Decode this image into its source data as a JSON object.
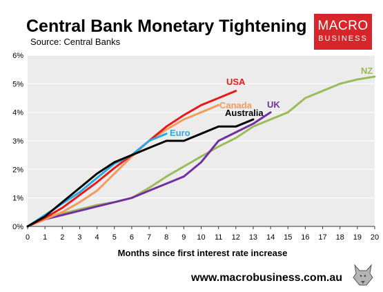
{
  "header": {
    "title": "Central Bank Monetary Tightening",
    "subtitle": "Source: Central Banks",
    "logo_line1": "MACRO",
    "logo_line2": "BUSINESS"
  },
  "footer": {
    "website": "www.macrobusiness.com.au"
  },
  "colors": {
    "plot_background": "#ececec",
    "gridline": "#ffffff",
    "logo_background": "#d6262b"
  },
  "chart_data": {
    "type": "line",
    "title": "Central Bank Monetary Tightening",
    "subtitle": "Source: Central Banks",
    "xlabel": "Months since first interest rate increase",
    "ylabel": "",
    "xlim": [
      0,
      20
    ],
    "ylim": [
      0,
      6
    ],
    "x_ticks": [
      "0",
      "1",
      "2",
      "3",
      "4",
      "5",
      "6",
      "7",
      "8",
      "9",
      "10",
      "11",
      "12",
      "13",
      "14",
      "15",
      "16",
      "17",
      "18",
      "19",
      "20"
    ],
    "y_ticks": [
      "0%",
      "1%",
      "2%",
      "3%",
      "4%",
      "5%",
      "6%"
    ],
    "grid": "horizontal",
    "legend": "inline labels",
    "series": [
      {
        "name": "Euro",
        "color": "#29abe2",
        "x": [
          0,
          1,
          2,
          3,
          4,
          5,
          6,
          7,
          8
        ],
        "y": [
          0,
          0.4,
          0.8,
          1.2,
          1.7,
          2.2,
          2.5,
          3.0,
          3.25
        ]
      },
      {
        "name": "USA",
        "color": "#e8191a",
        "x": [
          0,
          1,
          2,
          3,
          4,
          5,
          6,
          7,
          8,
          9,
          10,
          11,
          12
        ],
        "y": [
          0,
          0.3,
          0.65,
          1.1,
          1.55,
          2.05,
          2.5,
          3.0,
          3.5,
          3.9,
          4.25,
          4.5,
          4.75
        ]
      },
      {
        "name": "Canada",
        "color": "#f49a5a",
        "x": [
          0,
          1,
          2,
          3,
          4,
          5,
          6,
          7,
          8,
          9,
          10,
          11
        ],
        "y": [
          0,
          0.25,
          0.5,
          0.85,
          1.25,
          1.85,
          2.45,
          3.0,
          3.4,
          3.75,
          4.0,
          4.25
        ]
      },
      {
        "name": "Australia",
        "color": "#000000",
        "x": [
          0,
          1,
          2,
          3,
          4,
          5,
          6,
          7,
          8,
          9,
          10,
          11,
          12,
          13
        ],
        "y": [
          0,
          0.35,
          0.85,
          1.35,
          1.85,
          2.25,
          2.5,
          2.75,
          3.0,
          3.0,
          3.25,
          3.5,
          3.5,
          3.75
        ]
      },
      {
        "name": "UK",
        "color": "#7030a0",
        "x": [
          0,
          1,
          2,
          3,
          4,
          5,
          6,
          7,
          8,
          9,
          10,
          11,
          12,
          13,
          14
        ],
        "y": [
          0,
          0.25,
          0.4,
          0.55,
          0.7,
          0.85,
          1.0,
          1.25,
          1.5,
          1.75,
          2.25,
          3.0,
          3.3,
          3.6,
          4.0
        ]
      },
      {
        "name": "NZ",
        "color": "#9bbb59",
        "x": [
          0,
          1,
          2,
          3,
          4,
          5,
          6,
          7,
          8,
          9,
          10,
          11,
          12,
          13,
          14,
          15,
          16,
          17,
          18,
          19,
          20
        ],
        "y": [
          0,
          0.3,
          0.45,
          0.6,
          0.75,
          0.85,
          1.0,
          1.35,
          1.75,
          2.1,
          2.45,
          2.8,
          3.1,
          3.5,
          3.75,
          4.0,
          4.5,
          4.75,
          5.0,
          5.15,
          5.25
        ]
      }
    ]
  }
}
